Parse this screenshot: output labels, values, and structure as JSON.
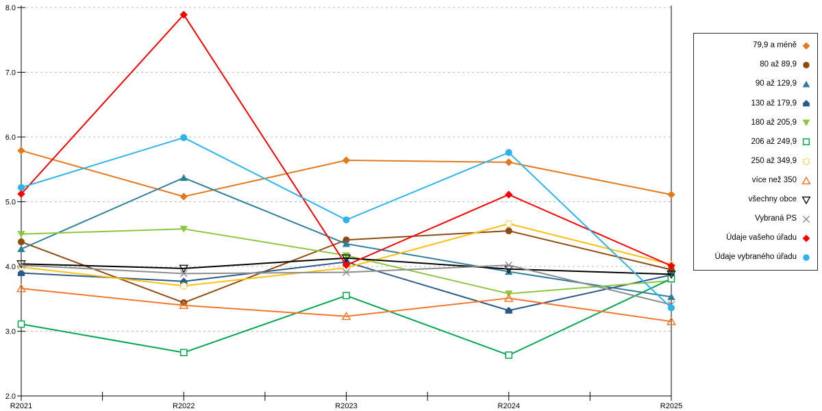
{
  "chart_data": {
    "type": "line",
    "title": "",
    "xlabel": "",
    "ylabel": "",
    "x_categories": [
      "R2021",
      "R2022",
      "R2023",
      "R2024",
      "R2025"
    ],
    "ylim": [
      2.0,
      8.0
    ],
    "y_ticks": [
      {
        "value": 8,
        "label": "8.0"
      },
      {
        "value": 7,
        "label": "7.0"
      },
      {
        "value": 6,
        "label": "6.0"
      },
      {
        "value": 5,
        "label": "5.0"
      },
      {
        "value": 4,
        "label": "4.0"
      },
      {
        "value": 3,
        "label": "3.0"
      },
      {
        "value": 2,
        "label": "2.0"
      }
    ],
    "grid": "horizontal-dotted",
    "legend_position": "right",
    "colors": {
      "axis": "#000000",
      "grid": "#b8b8b8",
      "background": "#ffffff"
    },
    "series": [
      {
        "name": "79,9 a méně",
        "marker": "diamond",
        "marker_fill": "solid",
        "color": "#E17A1F",
        "values": [
          5.79,
          5.08,
          5.64,
          5.61,
          5.11
        ]
      },
      {
        "name": "80 až 89,9",
        "marker": "circle",
        "marker_fill": "solid",
        "color": "#8E4B10",
        "values": [
          4.38,
          3.44,
          4.41,
          4.55,
          3.95
        ]
      },
      {
        "name": "90 až 129,9",
        "marker": "triangle-up",
        "marker_fill": "solid",
        "color": "#2E7F9C",
        "values": [
          4.27,
          5.37,
          4.35,
          3.92,
          3.53
        ]
      },
      {
        "name": "130 až 179,9",
        "marker": "pentagon",
        "marker_fill": "solid",
        "color": "#2B5A88",
        "values": [
          3.9,
          3.77,
          4.07,
          3.32,
          3.87
        ]
      },
      {
        "name": "180 až 205,9",
        "marker": "triangle-down",
        "marker_fill": "solid",
        "color": "#8CC63F",
        "values": [
          4.5,
          4.58,
          4.17,
          3.58,
          3.78
        ]
      },
      {
        "name": "206 až 249,9",
        "marker": "square",
        "marker_fill": "open",
        "color": "#00A550",
        "values": [
          3.11,
          2.67,
          3.55,
          2.63,
          3.81
        ]
      },
      {
        "name": "250 až 349,9",
        "marker": "circle",
        "marker_fill": "open",
        "marker_dash": true,
        "color": "#FDC012",
        "values": [
          3.99,
          3.7,
          3.98,
          4.66,
          4.03
        ]
      },
      {
        "name": "více než 350",
        "marker": "triangle-up",
        "marker_fill": "none",
        "color": "#F2762B",
        "values": [
          3.66,
          3.4,
          3.23,
          3.51,
          3.15
        ]
      },
      {
        "name": "všechny obce",
        "marker": "triangle-down",
        "marker_fill": "none",
        "color": "#000000",
        "values": [
          4.04,
          3.97,
          4.13,
          3.96,
          3.88
        ]
      },
      {
        "name": "Vybraná PS",
        "marker": "x",
        "marker_fill": "stroke",
        "color": "#8C8C8C",
        "values": [
          4.02,
          3.89,
          3.91,
          4.02,
          3.41
        ]
      },
      {
        "name": "Údaje vašeho úřadu",
        "marker": "diamond",
        "marker_fill": "solid",
        "color": "#F40000",
        "values": [
          5.12,
          7.89,
          4.02,
          5.11,
          4.01
        ]
      },
      {
        "name": "Údaje vybraného úřadu",
        "marker": "circle",
        "marker_fill": "solid",
        "color": "#2CB3E8",
        "values": [
          5.22,
          5.99,
          4.72,
          5.76,
          3.36
        ]
      }
    ]
  }
}
